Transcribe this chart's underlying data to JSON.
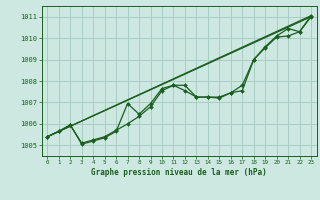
{
  "title": "Graphe pression niveau de la mer (hPa)",
  "background_color": "#cce8e0",
  "grid_color": "#aaccc4",
  "line_color": "#1a5e20",
  "xlim": [
    -0.5,
    23.5
  ],
  "ylim": [
    1004.5,
    1011.5
  ],
  "yticks": [
    1005,
    1006,
    1007,
    1008,
    1009,
    1010,
    1011
  ],
  "xticks": [
    0,
    1,
    2,
    3,
    4,
    5,
    6,
    7,
    8,
    9,
    10,
    11,
    12,
    13,
    14,
    15,
    16,
    17,
    18,
    19,
    20,
    21,
    22,
    23
  ],
  "series_main1": {
    "x": [
      0,
      1,
      2,
      3,
      4,
      5,
      6,
      7,
      8,
      9,
      10,
      11,
      12,
      13,
      14,
      15,
      16,
      17,
      18,
      19,
      20,
      21,
      22,
      23
    ],
    "y": [
      1005.4,
      1005.65,
      1005.95,
      1005.05,
      1005.2,
      1005.35,
      1005.65,
      1006.95,
      1006.45,
      1006.95,
      1007.65,
      1007.8,
      1007.55,
      1007.25,
      1007.25,
      1007.2,
      1007.45,
      1007.8,
      1009.0,
      1009.55,
      1010.05,
      1010.1,
      1010.3,
      1011.05
    ]
  },
  "series_main2": {
    "x": [
      0,
      1,
      2,
      3,
      4,
      5,
      6,
      7,
      8,
      9,
      10,
      11,
      12,
      13,
      14,
      15,
      16,
      17,
      18,
      19,
      20,
      21,
      22,
      23
    ],
    "y": [
      1005.4,
      1005.65,
      1005.95,
      1005.1,
      1005.25,
      1005.4,
      1005.7,
      1006.0,
      1006.35,
      1006.8,
      1007.55,
      1007.8,
      1007.8,
      1007.25,
      1007.25,
      1007.25,
      1007.45,
      1007.55,
      1009.0,
      1009.6,
      1010.1,
      1010.45,
      1010.3,
      1011.0
    ]
  },
  "trend1": {
    "x": [
      0,
      23
    ],
    "y": [
      1005.4,
      1011.05
    ]
  },
  "trend2": {
    "x": [
      0,
      23
    ],
    "y": [
      1005.4,
      1011.0
    ]
  }
}
